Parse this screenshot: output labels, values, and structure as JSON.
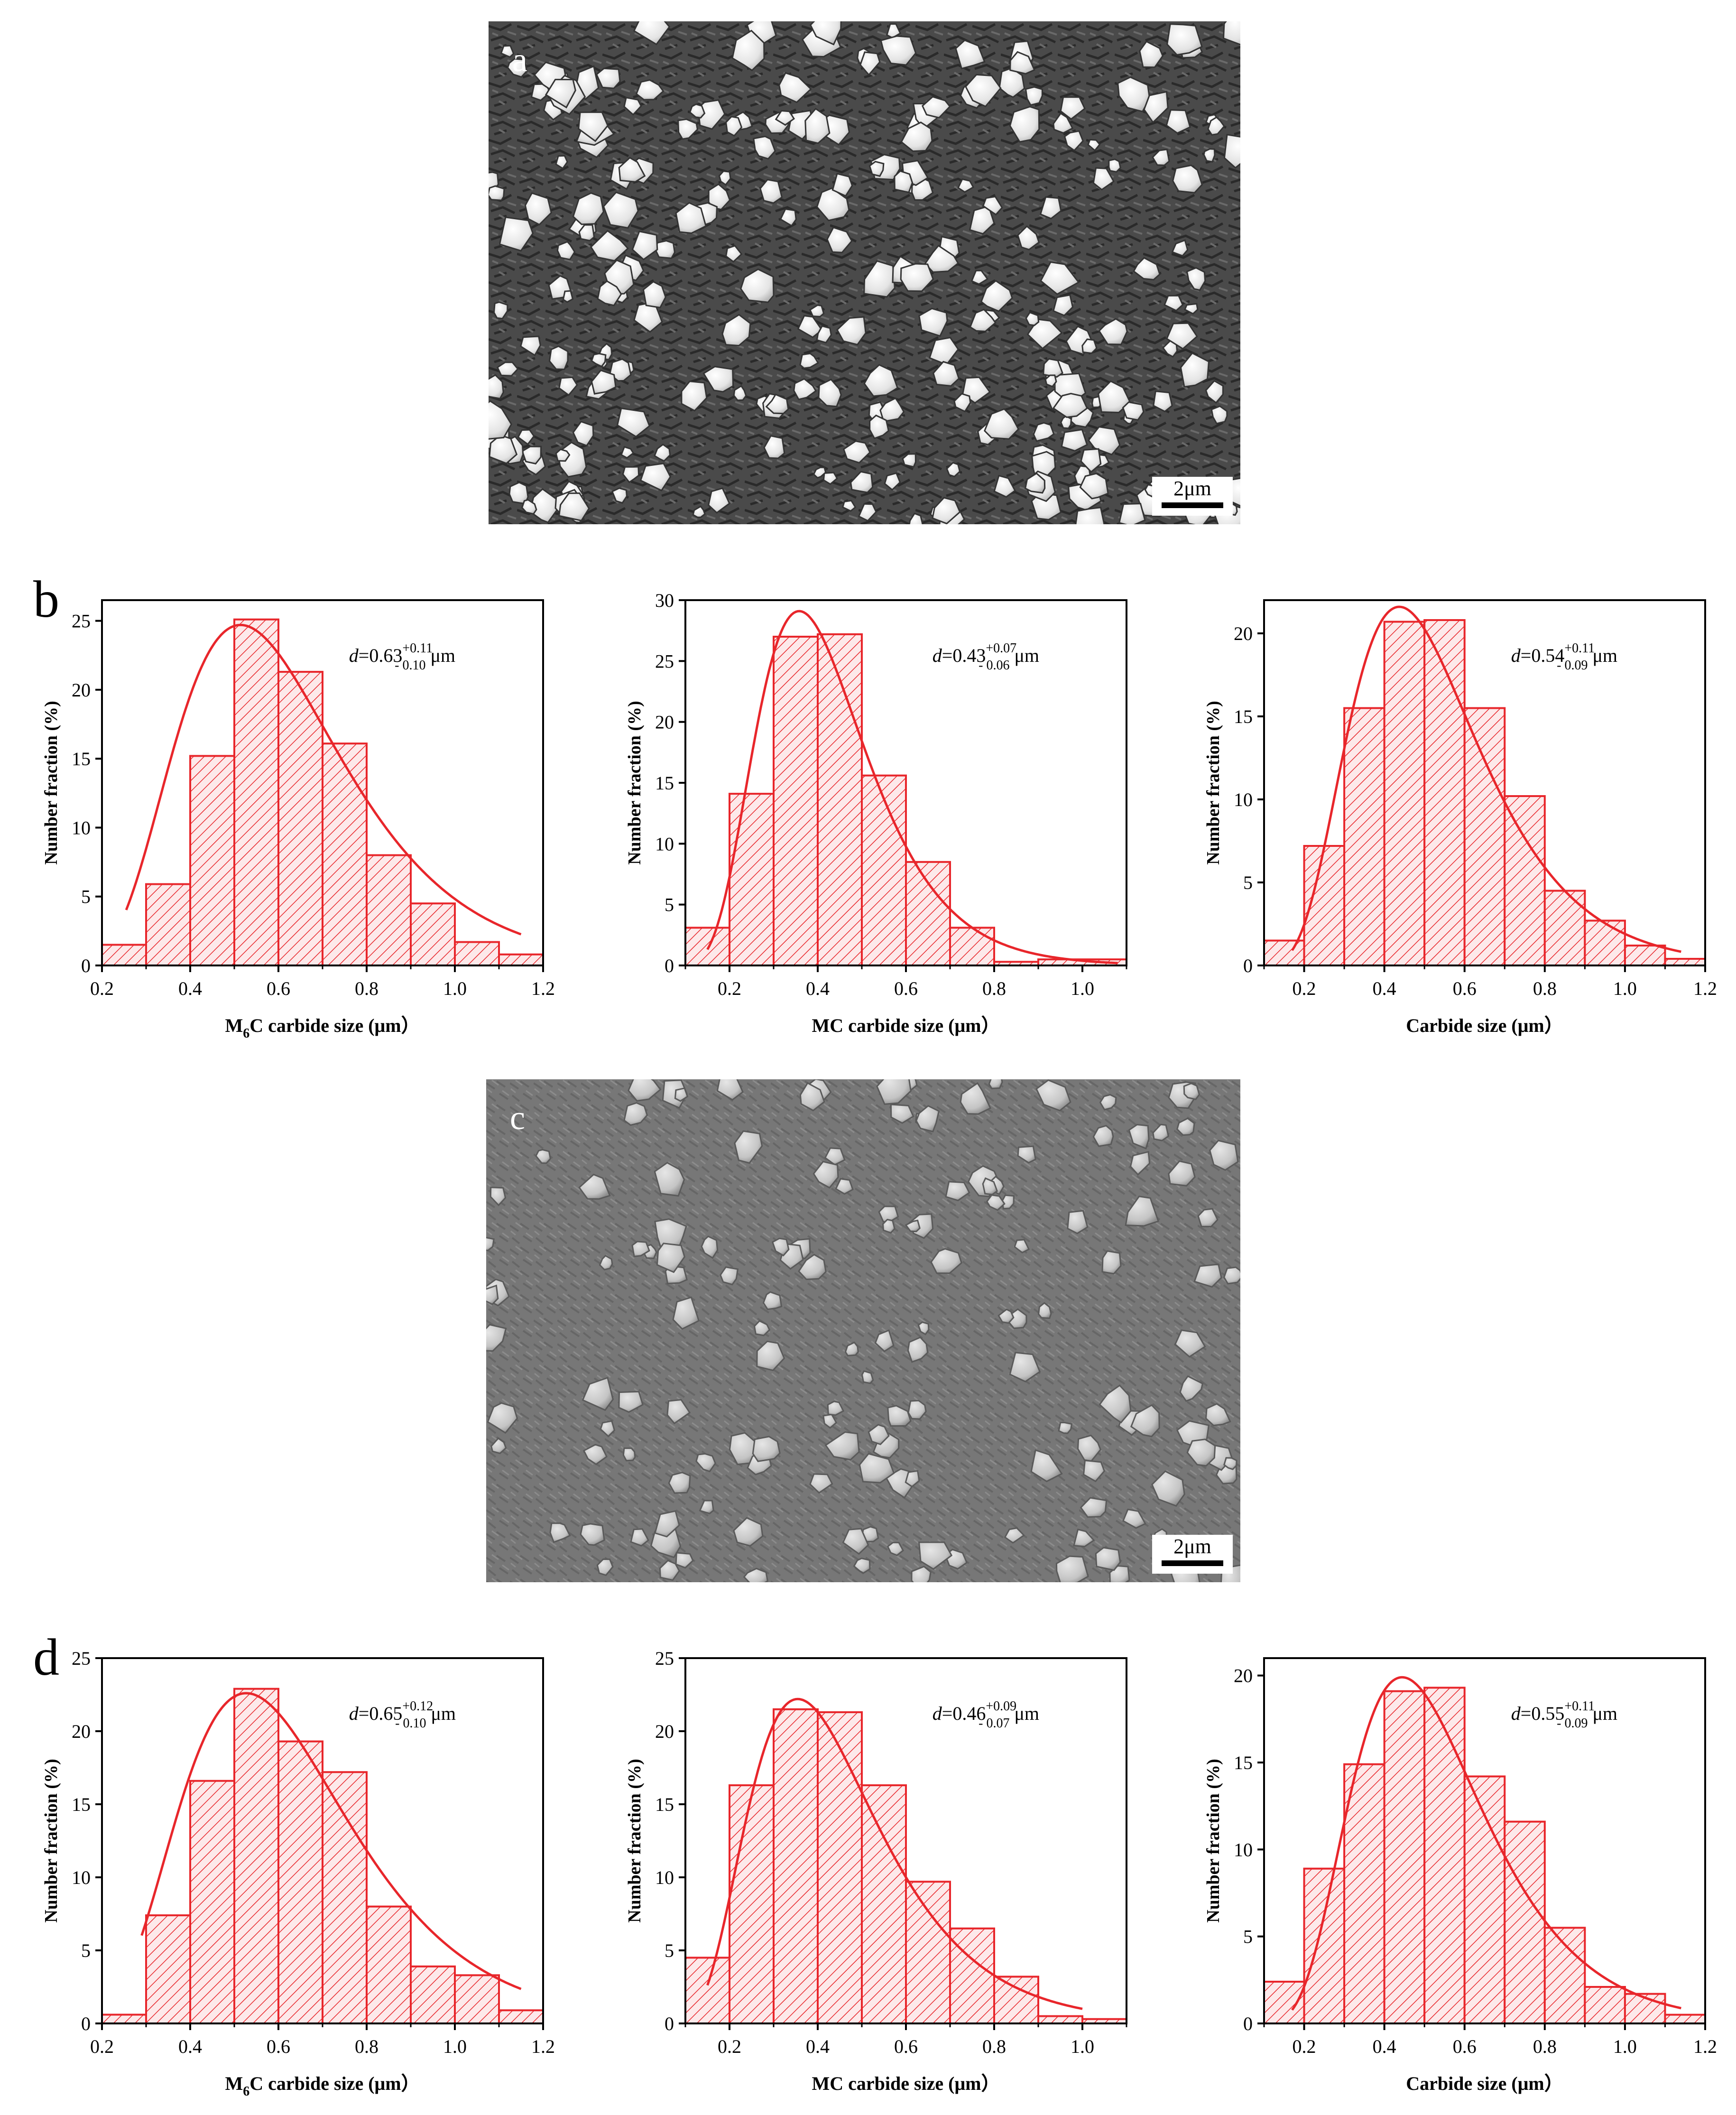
{
  "panels": {
    "a": {
      "letter": "a",
      "scale_label": "2μm"
    },
    "b": {
      "letter": "b"
    },
    "c": {
      "letter": "c",
      "scale_label": "2μm"
    },
    "d": {
      "letter": "d"
    }
  },
  "colors": {
    "hist": "#e8262b",
    "axis": "#000000"
  },
  "chart_data": [
    {
      "id": "b1",
      "type": "bar",
      "xlabel_main": "M",
      "xlabel_sub": "6",
      "xlabel_rest": "C carbide size (μm）",
      "ylabel": "Number fraction (%)",
      "xlim": [
        0.2,
        1.2
      ],
      "ylim": [
        0,
        26.5
      ],
      "xticks": [
        0.2,
        0.4,
        0.6,
        0.8,
        1.0,
        1.2
      ],
      "xtick_labels": [
        "0.2",
        "0.4",
        "0.6",
        "0.8",
        "1.0",
        "1.2"
      ],
      "yticks": [
        0,
        5,
        10,
        15,
        20,
        25
      ],
      "ytick_labels": [
        "0",
        "5",
        "10",
        "15",
        "20",
        "25"
      ],
      "bins": [
        [
          0.2,
          0.3
        ],
        [
          0.3,
          0.4
        ],
        [
          0.4,
          0.5
        ],
        [
          0.5,
          0.6
        ],
        [
          0.6,
          0.7
        ],
        [
          0.7,
          0.8
        ],
        [
          0.8,
          0.9
        ],
        [
          0.9,
          1.0
        ],
        [
          1.0,
          1.1
        ],
        [
          1.1,
          1.2
        ]
      ],
      "values": [
        1.5,
        5.9,
        15.2,
        25.1,
        21.3,
        16.1,
        8.0,
        4.5,
        1.7,
        0.8
      ],
      "fit": {
        "mu": 0.63,
        "sigma": 0.24,
        "peak": 24.7,
        "range": [
          0.255,
          1.15
        ]
      },
      "annotation": {
        "prefix": "d",
        "value": "=0.63",
        "sup": "+0.11",
        "sub": "- 0.10",
        "unit": " μm"
      }
    },
    {
      "id": "b2",
      "type": "bar",
      "xlabel_main": "MC carbide size (μm）",
      "xlabel_sub": "",
      "xlabel_rest": "",
      "ylabel": "Number fraction (%)",
      "xlim": [
        0.1,
        1.1
      ],
      "ylim": [
        0,
        30
      ],
      "xticks": [
        0.2,
        0.4,
        0.6,
        0.8,
        1.0
      ],
      "xtick_labels": [
        "0.2",
        "0.4",
        "0.6",
        "0.8",
        "1.0"
      ],
      "yticks": [
        0,
        5,
        10,
        15,
        20,
        25,
        30
      ],
      "ytick_labels": [
        "0",
        "5",
        "10",
        "15",
        "20",
        "25",
        "30"
      ],
      "bins": [
        [
          0.1,
          0.2
        ],
        [
          0.2,
          0.3
        ],
        [
          0.3,
          0.4
        ],
        [
          0.4,
          0.5
        ],
        [
          0.5,
          0.6
        ],
        [
          0.6,
          0.7
        ],
        [
          0.7,
          0.8
        ],
        [
          0.8,
          0.9
        ],
        [
          0.9,
          1.1
        ]
      ],
      "values": [
        3.1,
        14.1,
        27.0,
        27.2,
        15.6,
        8.5,
        3.1,
        0.3,
        0.5
      ],
      "fit": {
        "mu": 0.43,
        "sigma": 0.155,
        "peak": 29.1,
        "range": [
          0.15,
          1.08
        ]
      },
      "annotation": {
        "prefix": "d",
        "value": "=0.43",
        "sup": "+0.07",
        "sub": "- 0.06",
        "unit": " μm"
      }
    },
    {
      "id": "b3",
      "type": "bar",
      "xlabel_main": "Carbide size (μm）",
      "xlabel_sub": "",
      "xlabel_rest": "",
      "ylabel": "Number fraction (%)",
      "xlim": [
        0.1,
        1.2
      ],
      "ylim": [
        0,
        22
      ],
      "xticks": [
        0.2,
        0.4,
        0.6,
        0.8,
        1.0,
        1.2
      ],
      "xtick_labels": [
        "0.2",
        "0.4",
        "0.6",
        "0.8",
        "1.0",
        "1.2"
      ],
      "yticks": [
        0,
        5,
        10,
        15,
        20
      ],
      "ytick_labels": [
        "0",
        "5",
        "10",
        "15",
        "20"
      ],
      "bins": [
        [
          0.1,
          0.2
        ],
        [
          0.2,
          0.3
        ],
        [
          0.3,
          0.4
        ],
        [
          0.4,
          0.5
        ],
        [
          0.5,
          0.6
        ],
        [
          0.6,
          0.7
        ],
        [
          0.7,
          0.8
        ],
        [
          0.8,
          0.9
        ],
        [
          0.9,
          1.0
        ],
        [
          1.0,
          1.1
        ],
        [
          1.1,
          1.2
        ]
      ],
      "values": [
        1.5,
        7.2,
        15.5,
        20.7,
        20.8,
        15.5,
        10.2,
        4.5,
        2.7,
        1.2,
        0.4
      ],
      "fit": {
        "mu": 0.54,
        "sigma": 0.21,
        "peak": 21.6,
        "range": [
          0.17,
          1.14
        ]
      },
      "annotation": {
        "prefix": "d",
        "value": "=0.54",
        "sup": "+0.11",
        "sub": "- 0.09",
        "unit": " μm"
      }
    },
    {
      "id": "d1",
      "type": "bar",
      "xlabel_main": "M",
      "xlabel_sub": "6",
      "xlabel_rest": "C carbide size (μm）",
      "ylabel": "Number fraction (%)",
      "xlim": [
        0.2,
        1.2
      ],
      "ylim": [
        0,
        25
      ],
      "xticks": [
        0.2,
        0.4,
        0.6,
        0.8,
        1.0,
        1.2
      ],
      "xtick_labels": [
        "0.2",
        "0.4",
        "0.6",
        "0.8",
        "1.0",
        "1.2"
      ],
      "yticks": [
        0,
        5,
        10,
        15,
        20,
        25
      ],
      "ytick_labels": [
        "0",
        "5",
        "10",
        "15",
        "20",
        "25"
      ],
      "bins": [
        [
          0.2,
          0.3
        ],
        [
          0.3,
          0.4
        ],
        [
          0.4,
          0.5
        ],
        [
          0.5,
          0.6
        ],
        [
          0.6,
          0.7
        ],
        [
          0.7,
          0.8
        ],
        [
          0.8,
          0.9
        ],
        [
          0.9,
          1.0
        ],
        [
          1.0,
          1.1
        ],
        [
          1.1,
          1.2
        ]
      ],
      "values": [
        0.6,
        7.4,
        16.6,
        22.9,
        19.3,
        17.2,
        8.0,
        3.9,
        3.3,
        0.9
      ],
      "fit": {
        "mu": 0.645,
        "sigma": 0.245,
        "peak": 22.6,
        "range": [
          0.29,
          1.15
        ]
      },
      "annotation": {
        "prefix": "d",
        "value": "=0.65",
        "sup": "+0.12",
        "sub": "- 0.10",
        "unit": " μm"
      }
    },
    {
      "id": "d2",
      "type": "bar",
      "xlabel_main": "MC carbide size (μm）",
      "xlabel_sub": "",
      "xlabel_rest": "",
      "ylabel": "Number fraction (%)",
      "xlim": [
        0.1,
        1.1
      ],
      "ylim": [
        0,
        25
      ],
      "xticks": [
        0.2,
        0.4,
        0.6,
        0.8,
        1.0
      ],
      "xtick_labels": [
        "0.2",
        "0.4",
        "0.6",
        "0.8",
        "1.0"
      ],
      "yticks": [
        0,
        5,
        10,
        15,
        20,
        25
      ],
      "ytick_labels": [
        "0",
        "5",
        "10",
        "15",
        "20",
        "25"
      ],
      "bins": [
        [
          0.1,
          0.2
        ],
        [
          0.2,
          0.3
        ],
        [
          0.3,
          0.4
        ],
        [
          0.4,
          0.5
        ],
        [
          0.5,
          0.6
        ],
        [
          0.6,
          0.7
        ],
        [
          0.7,
          0.8
        ],
        [
          0.8,
          0.9
        ],
        [
          0.9,
          1.0
        ],
        [
          1.0,
          1.1
        ]
      ],
      "values": [
        4.5,
        16.3,
        21.5,
        21.3,
        16.3,
        9.7,
        6.5,
        3.2,
        0.5,
        0.3
      ],
      "fit": {
        "mu": 0.46,
        "sigma": 0.2,
        "peak": 22.2,
        "range": [
          0.15,
          1.0
        ]
      },
      "annotation": {
        "prefix": "d",
        "value": "=0.46",
        "sup": "+0.09",
        "sub": "- 0.07",
        "unit": " μm"
      }
    },
    {
      "id": "d3",
      "type": "bar",
      "xlabel_main": "Carbide size (μm）",
      "xlabel_sub": "",
      "xlabel_rest": "",
      "ylabel": "Number fraction (%)",
      "xlim": [
        0.1,
        1.2
      ],
      "ylim": [
        0,
        21
      ],
      "xticks": [
        0.2,
        0.4,
        0.6,
        0.8,
        1.0,
        1.2
      ],
      "xtick_labels": [
        "0.2",
        "0.4",
        "0.6",
        "0.8",
        "1.0",
        "1.2"
      ],
      "yticks": [
        0,
        5,
        10,
        15,
        20
      ],
      "ytick_labels": [
        "0",
        "5",
        "10",
        "15",
        "20"
      ],
      "bins": [
        [
          0.1,
          0.2
        ],
        [
          0.2,
          0.3
        ],
        [
          0.3,
          0.4
        ],
        [
          0.4,
          0.5
        ],
        [
          0.5,
          0.6
        ],
        [
          0.6,
          0.7
        ],
        [
          0.7,
          0.8
        ],
        [
          0.8,
          0.9
        ],
        [
          0.9,
          1.0
        ],
        [
          1.0,
          1.1
        ],
        [
          1.1,
          1.2
        ]
      ],
      "values": [
        2.4,
        8.9,
        14.9,
        19.1,
        19.3,
        14.2,
        11.6,
        5.5,
        2.1,
        1.7,
        0.5
      ],
      "fit": {
        "mu": 0.55,
        "sigma": 0.215,
        "peak": 19.9,
        "range": [
          0.17,
          1.14
        ]
      },
      "annotation": {
        "prefix": "d",
        "value": "=0.55",
        "sup": "+0.11",
        "sub": "- 0.09",
        "unit": " μm"
      }
    }
  ]
}
